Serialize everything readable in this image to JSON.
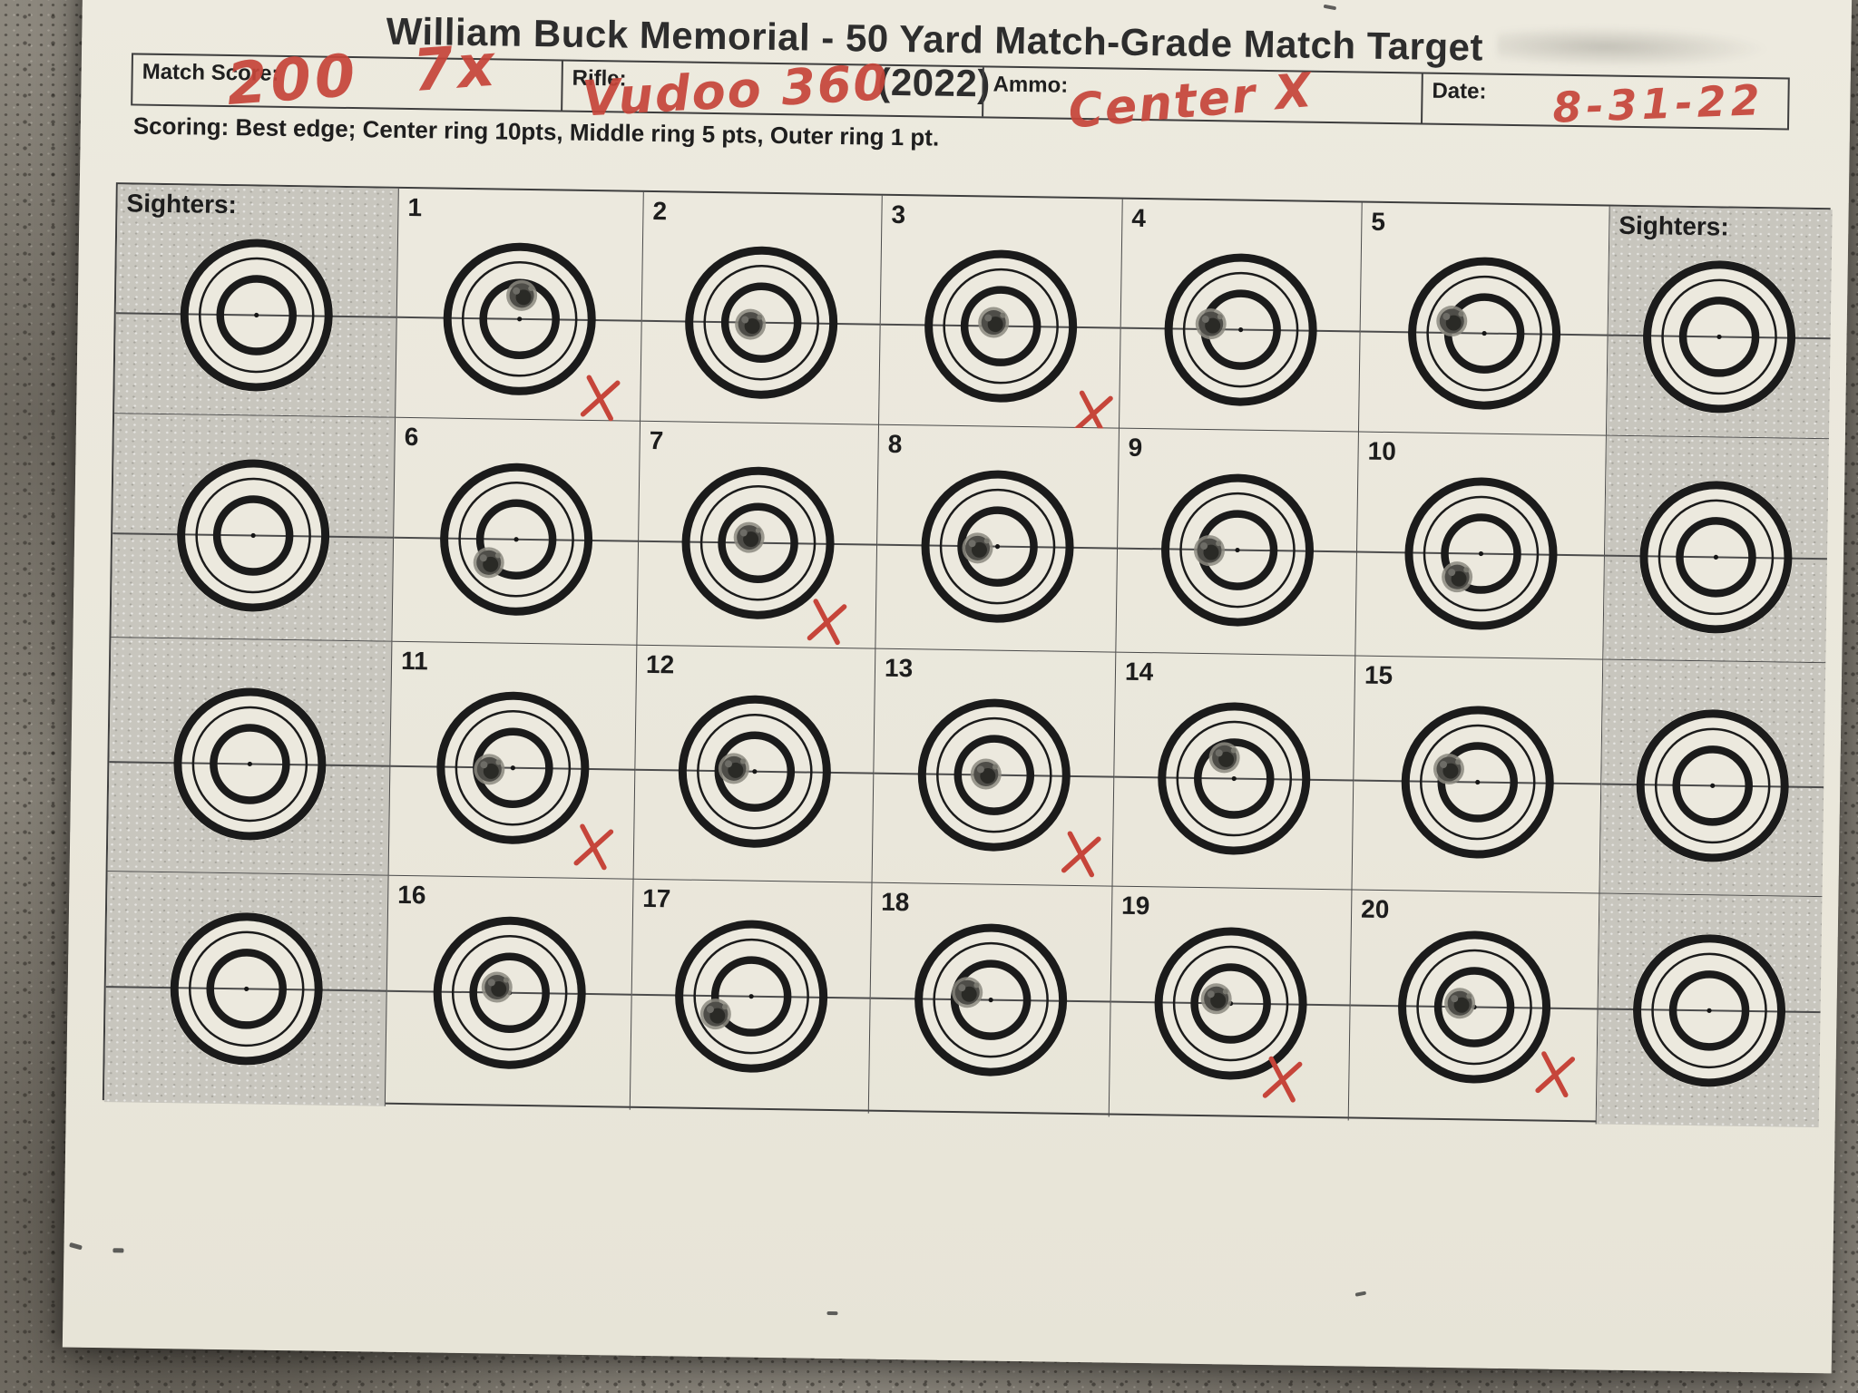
{
  "title": "William Buck Memorial - 50 Yard Match-Grade Match Target (2022)",
  "header_fields": [
    {
      "label": "Match Score:",
      "value": "200 7x"
    },
    {
      "label": "Rifle:",
      "value": "Vudoo 360"
    },
    {
      "label": "Ammo:",
      "value": "Center X"
    },
    {
      "label": "Date:",
      "value": "8-31-22"
    }
  ],
  "scoring_note": "Scoring: Best edge; Center ring 10pts, Middle ring 5 pts, Outer ring 1 pt.",
  "colors": {
    "ink_red": "#c6453a",
    "paper": "#eae7db",
    "paper_inner": "#ece9de",
    "sighter_gray": "#c8c6be",
    "target_black": "#1b1b1b",
    "line_gray": "#4c4c4c"
  },
  "grid": {
    "rows": 4,
    "columns": 7,
    "cells": [
      {
        "row": 0,
        "col": 0,
        "type": "sighter",
        "label": "Sighters:",
        "hole": null,
        "x_mark": null
      },
      {
        "row": 0,
        "col": 1,
        "type": "record",
        "label": "1",
        "hole": [
          2,
          -26
        ],
        "x_mark": [
          91,
          85
        ]
      },
      {
        "row": 0,
        "col": 2,
        "type": "record",
        "label": "2",
        "hole": [
          -12,
          2
        ],
        "x_mark": null
      },
      {
        "row": 0,
        "col": 3,
        "type": "record",
        "label": "3",
        "hole": [
          -8,
          -4
        ],
        "x_mark": [
          104,
          94
        ]
      },
      {
        "row": 0,
        "col": 4,
        "type": "record",
        "label": "4",
        "hole": [
          -33,
          -6
        ],
        "x_mark": null
      },
      {
        "row": 0,
        "col": 5,
        "type": "record",
        "label": "5",
        "hole": [
          -36,
          -13
        ],
        "x_mark": null
      },
      {
        "row": 0,
        "col": 6,
        "type": "sighter",
        "label": "Sighters:",
        "hole": null,
        "x_mark": null
      },
      {
        "row": 1,
        "col": 0,
        "type": "sighter",
        "label": "",
        "hole": null,
        "x_mark": null
      },
      {
        "row": 1,
        "col": 1,
        "type": "record",
        "label": "6",
        "hole": [
          -30,
          26
        ],
        "x_mark": null
      },
      {
        "row": 1,
        "col": 2,
        "type": "record",
        "label": "7",
        "hole": [
          -10,
          -6
        ],
        "x_mark": [
          78,
          85
        ]
      },
      {
        "row": 1,
        "col": 3,
        "type": "record",
        "label": "8",
        "hole": [
          -22,
          2
        ],
        "x_mark": null
      },
      {
        "row": 1,
        "col": 4,
        "type": "record",
        "label": "9",
        "hole": [
          -31,
          1
        ],
        "x_mark": null
      },
      {
        "row": 1,
        "col": 5,
        "type": "record",
        "label": "10",
        "hole": [
          -26,
          26
        ],
        "x_mark": null
      },
      {
        "row": 1,
        "col": 6,
        "type": "sighter",
        "label": "",
        "hole": null,
        "x_mark": null
      },
      {
        "row": 2,
        "col": 0,
        "type": "sighter",
        "label": "",
        "hole": null,
        "x_mark": null
      },
      {
        "row": 2,
        "col": 1,
        "type": "record",
        "label": "11",
        "hole": [
          -26,
          2
        ],
        "x_mark": [
          91,
          85
        ]
      },
      {
        "row": 2,
        "col": 2,
        "type": "record",
        "label": "12",
        "hole": [
          -23,
          -3
        ],
        "x_mark": null
      },
      {
        "row": 2,
        "col": 3,
        "type": "record",
        "label": "13",
        "hole": [
          -9,
          -1
        ],
        "x_mark": [
          98,
          85
        ]
      },
      {
        "row": 2,
        "col": 4,
        "type": "record",
        "label": "14",
        "hole": [
          -11,
          -23
        ],
        "x_mark": null
      },
      {
        "row": 2,
        "col": 5,
        "type": "record",
        "label": "15",
        "hole": [
          -32,
          -14
        ],
        "x_mark": null
      },
      {
        "row": 2,
        "col": 6,
        "type": "sighter",
        "label": "",
        "hole": null,
        "x_mark": null
      },
      {
        "row": 3,
        "col": 0,
        "type": "sighter",
        "label": "",
        "hole": null,
        "x_mark": null
      },
      {
        "row": 3,
        "col": 1,
        "type": "record",
        "label": "16",
        "hole": [
          -14,
          -6
        ],
        "x_mark": null
      },
      {
        "row": 3,
        "col": 2,
        "type": "record",
        "label": "17",
        "hole": [
          -39,
          20
        ],
        "x_mark": null
      },
      {
        "row": 3,
        "col": 3,
        "type": "record",
        "label": "18",
        "hole": [
          -26,
          -8
        ],
        "x_mark": null
      },
      {
        "row": 3,
        "col": 4,
        "type": "record",
        "label": "19",
        "hole": [
          -16,
          -5
        ],
        "x_mark": [
          59,
          82
        ]
      },
      {
        "row": 3,
        "col": 5,
        "type": "record",
        "label": "20",
        "hole": [
          -16,
          -4
        ],
        "x_mark": [
          91,
          72
        ]
      },
      {
        "row": 3,
        "col": 6,
        "type": "sighter",
        "label": "",
        "hole": null,
        "x_mark": null
      }
    ]
  }
}
